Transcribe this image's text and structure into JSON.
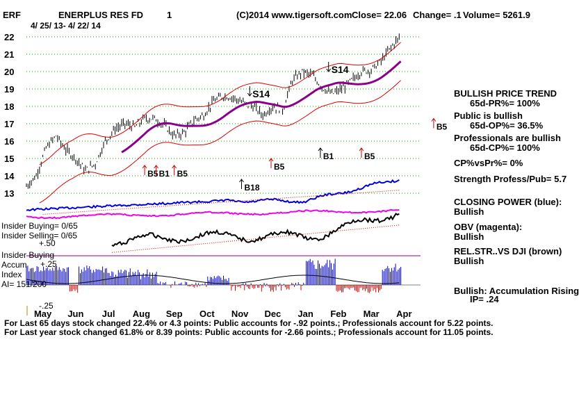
{
  "header": {
    "symbol": "ERF",
    "company": "ENERPLUS RES FD",
    "number": "1",
    "copyright": "(C)2014 www.tigersoft.com",
    "close": "Close=  22.06",
    "change": "Change= .1",
    "volume": "Volume= 5261.9",
    "daterange": "4/ 25/ 13- 4/ 22/ 14"
  },
  "right_panel": {
    "trend_title": "BULLISH PRICE TREND",
    "pr65": "65d-PR%= 100%",
    "public_title": "Public is bullish",
    "op65": "65d-OP%= 36.5%",
    "prof_title": "Professionals are bullish",
    "cp65": "65d-CP%= 100%",
    "cpvspr": "CP%vsPr%=  0%",
    "strength": "Strength Profess/Pub= 5.7",
    "closing_power": "CLOSING POWER (blue):",
    "cp_state": "Bullish",
    "obv": "OBV (magenta):",
    "obv_state": "Bullish",
    "relstr": "REL.STR..VS DJI (brown)",
    "relstr_state": "Bullish",
    "accum": "Bullish: Accumulation Rising",
    "ip": "IP=  .24"
  },
  "left_panel": {
    "insider_buying": "Insider Buying= 0/65",
    "insider_selling": "Insider Selling= 0/65",
    "plus50": "+.50",
    "insider_buying2": "Insider Buying",
    "accum": "Accum",
    "plus25": "+.25",
    "index": "Index",
    "ai": "AI= 151/200",
    "minus25": "-.25"
  },
  "footer": {
    "line1": "For Last 65 days stock changed  22.4% or  4.3 points:  Public accounts for -.92 points.;  Professionals account for  5.22 points.",
    "line2": "For Last year stock changed  61.8% or  8.39 points:  Public accounts for -2.66 points.;  Professionals account for  11.05 points."
  },
  "colors": {
    "price": "#000000",
    "band": "#dd0000",
    "ma": "#8b008b",
    "closing_power": "#0000dd",
    "obv": "#ee00ee",
    "accum": "#0000cc",
    "accum_neg": "#cc0000",
    "grid": "#00aa00"
  },
  "chart_data": {
    "type": "line",
    "y_ticks": [
      "22",
      "21",
      "20",
      "19",
      "18",
      "17",
      "16",
      "15",
      "14",
      "13"
    ],
    "ylim": [
      13,
      22
    ],
    "months": [
      "May",
      "Jun",
      "Jul",
      "Aug",
      "Sep",
      "Oct",
      "Nov",
      "Dec",
      "Jan",
      "Feb",
      "Mar",
      "Apr"
    ],
    "price_series": {
      "name": "price",
      "x": [
        0,
        0.3,
        0.6,
        0.9,
        1.2,
        1.5,
        1.8,
        2.1,
        2.4,
        2.7,
        3.0,
        3.3,
        3.6,
        3.9,
        4.2,
        4.5,
        4.8,
        5.1,
        5.4,
        5.7,
        6.0,
        6.3,
        6.6,
        6.9,
        7.2,
        7.5,
        7.8,
        8.1,
        8.4,
        8.7,
        9.0,
        9.3,
        9.6,
        9.9,
        10.2,
        10.5,
        10.8,
        11.1,
        11.4
      ],
      "values": [
        13.4,
        14.0,
        15.6,
        16.3,
        15.5,
        15.0,
        14.3,
        14.7,
        16.0,
        16.7,
        17.0,
        16.8,
        17.3,
        17.3,
        16.9,
        16.3,
        16.5,
        17.2,
        17.5,
        18.3,
        18.6,
        18.5,
        18.2,
        18.0,
        17.5,
        18.0,
        17.8,
        19.5,
        20.0,
        19.8,
        19.1,
        18.7,
        19.0,
        19.5,
        20.0,
        20.1,
        20.6,
        21.4,
        22.06
      ]
    },
    "annotations": [
      {
        "label": "S14",
        "dir": "down",
        "x": 6.8,
        "y": 18.6
      },
      {
        "label": "S14",
        "dir": "down",
        "x": 9.2,
        "y": 20.0
      },
      {
        "label": "B5",
        "dir": "up",
        "x": 3.6,
        "y": 14.6
      },
      {
        "label": "B1",
        "dir": "up",
        "x": 3.95,
        "y": 14.6
      },
      {
        "label": "B5",
        "dir": "up",
        "x": 4.5,
        "y": 14.6
      },
      {
        "label": "B18",
        "dir": "up",
        "x": 6.55,
        "y": 13.8
      },
      {
        "label": "B5",
        "dir": "up",
        "x": 7.45,
        "y": 15.0
      },
      {
        "label": "B1",
        "dir": "up",
        "x": 8.95,
        "y": 15.6
      },
      {
        "label": "B5",
        "dir": "up",
        "x": 10.2,
        "y": 15.6
      },
      {
        "label": "B5",
        "dir": "up",
        "x": 12.4,
        "y": 17.3
      }
    ]
  }
}
